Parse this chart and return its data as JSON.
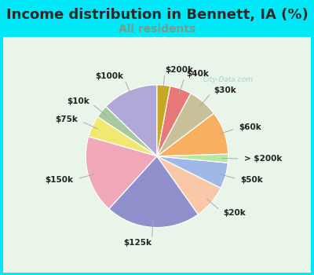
{
  "title": "Income distribution in Bennett, IA (%)",
  "subtitle": "All residents",
  "title_color": "#2a2a2a",
  "subtitle_color": "#7a9a8a",
  "background_outer": "#00e8f8",
  "background_inner": "#e8f5e8",
  "watermark": "City-Data.com",
  "labels": [
    "$100k",
    "$10k",
    "$75k",
    "$150k",
    "$125k",
    "$20k",
    "$50k",
    "> $200k",
    "$60k",
    "$30k",
    "$40k",
    "$200k"
  ],
  "values": [
    13,
    3,
    5,
    18,
    22,
    8,
    6,
    2,
    10,
    7,
    5,
    3
  ],
  "colors": [
    "#b0a8d8",
    "#a8c8a0",
    "#f0e870",
    "#f0a8b8",
    "#9090cc",
    "#f8c8a8",
    "#a0b8e8",
    "#b8e8a0",
    "#f8b060",
    "#c8c098",
    "#e87878",
    "#c8a820"
  ],
  "startangle": 90,
  "label_fontsize": 7.5,
  "title_fontsize": 13,
  "subtitle_fontsize": 10,
  "pct_distance": 0.0,
  "label_distance": 1.22
}
